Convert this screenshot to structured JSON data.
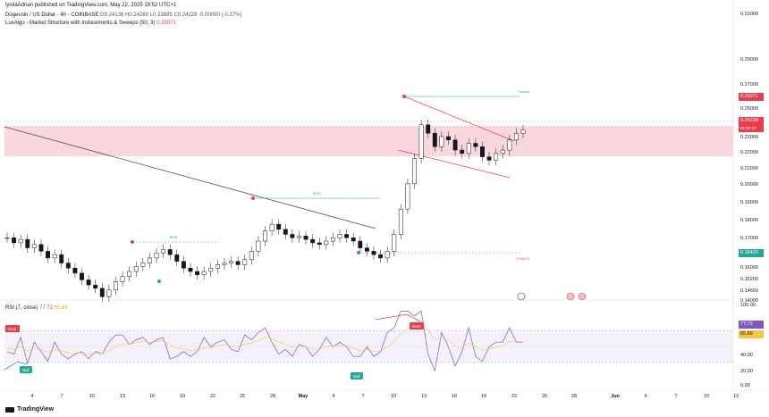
{
  "header": {
    "publisher": "lyiolaAdrian published on TradingView.com, May 22, 2025 19:52 UTC+1",
    "symbol": "Dogecoin / US Dollar · 4h · COINBASE",
    "ohlc": "O0.24138  H0.24280  L0.23885  C0.24228  -0.00090 (-0.37%)",
    "indicator_name": "LuxAlgo - Market Structure with Inducements & Sweeps (50, 3)",
    "indicator_value": "0.25971"
  },
  "price_axis": {
    "labels": [
      "0.31000",
      "0.29000",
      "0.27000",
      "0.25000",
      "0.23000",
      "0.22000",
      "0.21000",
      "0.20000",
      "0.19000",
      "0.18000",
      "0.17000",
      "0.16000",
      "0.15200",
      "0.14650",
      "0.14000"
    ],
    "badge_sweep": "0.25971",
    "badge_current": "0.24228",
    "badge_current_sub": "01:07:47",
    "badge_low": "0.16420"
  },
  "rsi": {
    "title": "RSI (7, close)",
    "value1": "77.72",
    "value2": "65.89",
    "axis_labels": [
      "100.00",
      "40.00",
      "20.00",
      "0.00"
    ],
    "badge_value": "77.72",
    "badge_ma": "65.89"
  },
  "chart_labels": {
    "bear1": "Bear",
    "bear2": "Bear",
    "bull1": "Bull",
    "bull2": "Bull",
    "bos1": "BOS",
    "bos2": "BOS",
    "choch": "CHoCH",
    "sweep": "Sweep"
  },
  "x_axis": {
    "labels": [
      "4",
      "7",
      "10",
      "13",
      "16",
      "19",
      "22",
      "25",
      "28",
      "May",
      "4",
      "7",
      "10",
      "13",
      "16",
      "19",
      "22",
      "25",
      "28",
      "Jun",
      "4",
      "7",
      "10",
      "13"
    ]
  },
  "footer": {
    "brand": "TradingView"
  },
  "colors": {
    "up": "#131722",
    "zone": "#f7c5cc",
    "trendline": "#e83e4d",
    "rsi": "#7e57c2"
  },
  "chart_data": {
    "type": "candlestick",
    "xlabel": "",
    "ylabel": "",
    "ylim": [
      0.14,
      0.31
    ],
    "x_ticks": [
      "4",
      "7",
      "10",
      "13",
      "16",
      "19",
      "22",
      "25",
      "28",
      "May",
      "4",
      "7",
      "10",
      "13",
      "16",
      "19",
      "22",
      "25",
      "28",
      "Jun",
      "4",
      "7",
      "10",
      "13"
    ],
    "close": [
      0.178,
      0.175,
      0.177,
      0.172,
      0.174,
      0.17,
      0.166,
      0.168,
      0.163,
      0.16,
      0.157,
      0.153,
      0.15,
      0.148,
      0.143,
      0.147,
      0.152,
      0.155,
      0.158,
      0.161,
      0.163,
      0.166,
      0.169,
      0.171,
      0.168,
      0.164,
      0.16,
      0.158,
      0.156,
      0.158,
      0.16,
      0.162,
      0.163,
      0.164,
      0.162,
      0.165,
      0.17,
      0.176,
      0.182,
      0.186,
      0.183,
      0.18,
      0.178,
      0.179,
      0.177,
      0.175,
      0.174,
      0.176,
      0.178,
      0.18,
      0.178,
      0.176,
      0.172,
      0.17,
      0.168,
      0.166,
      0.17,
      0.18,
      0.195,
      0.21,
      0.225,
      0.245,
      0.24,
      0.232,
      0.238,
      0.236,
      0.23,
      0.228,
      0.234,
      0.232,
      0.226,
      0.224,
      0.228,
      0.23,
      0.236,
      0.24,
      0.242
    ]
  }
}
